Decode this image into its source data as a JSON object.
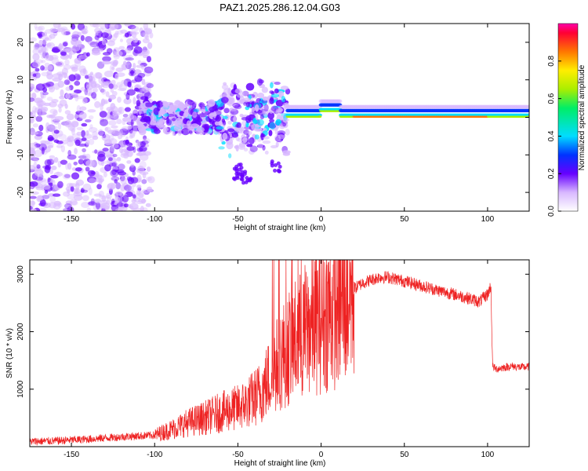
{
  "title": "PAZ1.2025.286.12.04.G03",
  "colors": {
    "snr_line": "#ee2222",
    "axis": "#000000",
    "background": "#ffffff"
  },
  "chart_data": [
    {
      "type": "heatmap",
      "name": "spectrogram",
      "xlabel": "Height of straight line (km)",
      "ylabel": "Frequency (Hz)",
      "xlim": [
        -175,
        125
      ],
      "ylim": [
        -25,
        25
      ],
      "xticks": [
        -150,
        -100,
        -50,
        0,
        50,
        100
      ],
      "yticks": [
        -20,
        -10,
        0,
        10,
        20
      ],
      "colorbar": {
        "label": "Normalized spectral amplitude",
        "range": [
          0,
          1
        ],
        "ticks": [
          "0.0",
          "0.2",
          "0.4",
          "0.6",
          "0.8"
        ]
      },
      "regions": [
        {
          "x": [
            -175,
            -110
          ],
          "freq_range": [
            -25,
            25
          ],
          "amplitude": 0.2,
          "description": "scattered noise"
        },
        {
          "x": [
            -110,
            -20
          ],
          "freq_range": [
            -8,
            8
          ],
          "amplitude": 0.35,
          "description": "broken signal"
        },
        {
          "x": [
            -20,
            125
          ],
          "freq_range": [
            -1,
            2
          ],
          "amplitude": 0.9,
          "description": "strong narrow tone"
        }
      ]
    },
    {
      "type": "line",
      "name": "snr",
      "xlabel": "Height of straight line (km)",
      "ylabel": "SNR (10 * v/v)",
      "xlim": [
        -175,
        125
      ],
      "ylim": [
        0,
        3250
      ],
      "xticks": [
        -150,
        -100,
        -50,
        0,
        50,
        100
      ],
      "yticks": [
        1000,
        2000,
        3000
      ],
      "series": [
        {
          "name": "SNR",
          "x": [
            -175,
            -160,
            -140,
            -120,
            -100,
            -90,
            -80,
            -70,
            -60,
            -50,
            -45,
            -40,
            -35,
            -30,
            -25,
            -20,
            -15,
            -10,
            -5,
            0,
            5,
            10,
            15,
            20,
            25,
            30,
            35,
            40,
            50,
            60,
            70,
            80,
            90,
            95,
            100,
            102,
            103,
            105,
            110,
            115,
            120,
            125
          ],
          "y": [
            90,
            100,
            130,
            170,
            200,
            300,
            420,
            500,
            600,
            680,
            750,
            850,
            1000,
            1250,
            1500,
            1700,
            1850,
            2000,
            2150,
            2250,
            2350,
            2450,
            2600,
            2750,
            2850,
            2900,
            2950,
            2950,
            2880,
            2800,
            2720,
            2650,
            2570,
            2520,
            2650,
            2800,
            1400,
            1350,
            1380,
            1400,
            1380,
            1390
          ]
        }
      ]
    }
  ]
}
